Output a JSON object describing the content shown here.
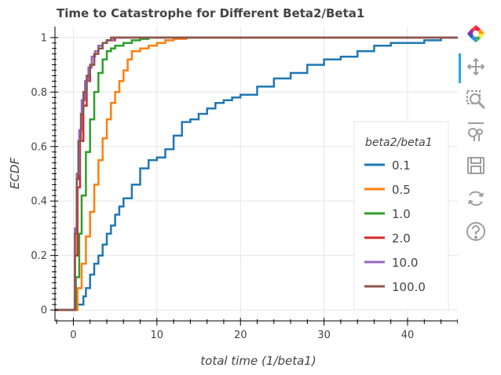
{
  "toolbar": {
    "tools": [
      {
        "name": "bokeh-logo-icon",
        "interactable": true
      },
      {
        "name": "pan-tool-icon",
        "interactable": true,
        "active": true
      },
      {
        "name": "box-zoom-tool-icon",
        "interactable": true
      },
      {
        "name": "wheel-zoom-tool-icon",
        "interactable": true
      },
      {
        "name": "save-tool-icon",
        "interactable": true
      },
      {
        "name": "reset-tool-icon",
        "interactable": true
      },
      {
        "name": "help-tool-icon",
        "interactable": true
      }
    ]
  },
  "chart_data": {
    "type": "line",
    "step": true,
    "title": "Time to Catastrophe for Different Beta2/Beta1",
    "xlabel": "total time (1/beta1)",
    "ylabel": "ECDF",
    "xlim": [
      -2.2,
      46.2
    ],
    "ylim": [
      -0.04,
      1.04
    ],
    "xticks": [
      0,
      10,
      20,
      30,
      40
    ],
    "yticks": [
      0,
      0.2,
      0.4,
      0.6,
      0.8,
      1
    ],
    "ytick_labels": [
      "0",
      "0.2",
      "0.4",
      "0.6",
      "0.8",
      "1"
    ],
    "grid": true,
    "legend": {
      "title": "beta2/beta1",
      "position": "right"
    },
    "series": [
      {
        "name": "0.1",
        "color": "#1f77b4",
        "x": [
          -2.2,
          0.2,
          0.4,
          1.2,
          1.5,
          2.0,
          2.5,
          3.0,
          3.5,
          4.0,
          4.5,
          5.0,
          5.5,
          6.0,
          7.0,
          8.0,
          9.0,
          10.0,
          11.0,
          12.0,
          13.0,
          14.0,
          15.0,
          16.0,
          17.0,
          18.0,
          19.0,
          20.0,
          22.0,
          24.0,
          26.0,
          28.0,
          30.0,
          32.0,
          34.0,
          36.0,
          38.0,
          40.0,
          42.0,
          44.0,
          46.2
        ],
        "y": [
          0,
          0,
          0.02,
          0.05,
          0.08,
          0.13,
          0.17,
          0.2,
          0.24,
          0.28,
          0.31,
          0.35,
          0.38,
          0.41,
          0.46,
          0.52,
          0.55,
          0.56,
          0.59,
          0.64,
          0.69,
          0.7,
          0.72,
          0.74,
          0.76,
          0.77,
          0.78,
          0.79,
          0.82,
          0.85,
          0.87,
          0.9,
          0.92,
          0.93,
          0.95,
          0.97,
          0.98,
          0.98,
          0.99,
          1.0,
          1.0
        ]
      },
      {
        "name": "0.5",
        "color": "#ff7f0e",
        "x": [
          -2.2,
          0.0,
          0.5,
          1.0,
          1.5,
          2.0,
          2.5,
          3.0,
          3.5,
          4.0,
          4.5,
          5.0,
          5.5,
          6.0,
          6.5,
          7.0,
          8.0,
          9.0,
          10.0,
          11.0,
          12.0,
          13.5,
          46.2
        ],
        "y": [
          0,
          0,
          0.08,
          0.17,
          0.27,
          0.36,
          0.46,
          0.55,
          0.63,
          0.7,
          0.76,
          0.8,
          0.84,
          0.88,
          0.92,
          0.95,
          0.96,
          0.97,
          0.98,
          0.99,
          0.995,
          1.0,
          1.0
        ]
      },
      {
        "name": "1.0",
        "color": "#2ca02c",
        "x": [
          -2.2,
          0.0,
          0.3,
          0.7,
          1.0,
          1.5,
          2.0,
          2.5,
          3.0,
          3.5,
          4.0,
          4.5,
          5.0,
          6.0,
          7.0,
          8.0,
          9.0,
          46.2
        ],
        "y": [
          0,
          0,
          0.12,
          0.28,
          0.42,
          0.58,
          0.7,
          0.8,
          0.87,
          0.92,
          0.95,
          0.96,
          0.97,
          0.98,
          0.99,
          0.995,
          1.0,
          1.0
        ]
      },
      {
        "name": "2.0",
        "color": "#d62728",
        "x": [
          -2.2,
          0.0,
          0.2,
          0.5,
          0.8,
          1.2,
          1.6,
          2.0,
          2.5,
          3.0,
          3.5,
          4.0,
          5.0,
          46.2
        ],
        "y": [
          0,
          0,
          0.2,
          0.45,
          0.62,
          0.75,
          0.84,
          0.9,
          0.94,
          0.97,
          0.98,
          0.99,
          1.0,
          1.0
        ]
      },
      {
        "name": "10.0",
        "color": "#9467bd",
        "x": [
          -2.2,
          0.0,
          0.2,
          0.4,
          0.7,
          1.0,
          1.4,
          1.8,
          2.2,
          2.6,
          3.0,
          3.5,
          4.0,
          4.8,
          46.2
        ],
        "y": [
          0,
          0,
          0.3,
          0.5,
          0.66,
          0.77,
          0.84,
          0.89,
          0.93,
          0.95,
          0.97,
          0.98,
          0.99,
          1.0,
          1.0
        ]
      },
      {
        "name": "100.0",
        "color": "#8c564b",
        "x": [
          -2.2,
          0.0,
          0.2,
          0.4,
          0.6,
          0.9,
          1.2,
          1.6,
          2.0,
          2.5,
          3.0,
          3.5,
          4.0,
          4.5,
          46.2
        ],
        "y": [
          0,
          0,
          0.28,
          0.48,
          0.62,
          0.72,
          0.8,
          0.86,
          0.9,
          0.94,
          0.96,
          0.98,
          0.99,
          1.0,
          1.0
        ]
      }
    ]
  }
}
